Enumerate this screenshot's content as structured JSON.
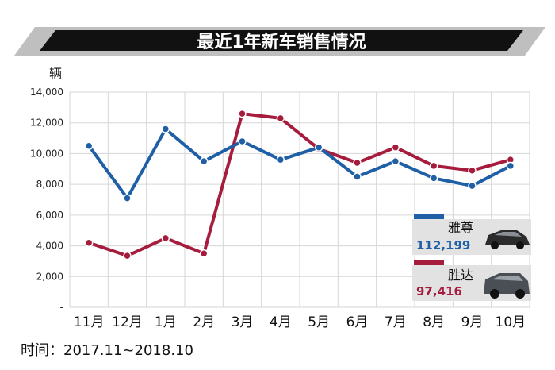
{
  "chart_data": {
    "type": "line",
    "title": "最近1年新车销售情况",
    "ylabel": "辆",
    "categories": [
      "11月",
      "12月",
      "1月",
      "2月",
      "3月",
      "4月",
      "5月",
      "6月",
      "7月",
      "8月",
      "9月",
      "10月"
    ],
    "ylim": [
      0,
      14000
    ],
    "yticks": [
      "-",
      "2,000",
      "4,000",
      "6,000",
      "8,000",
      "10,000",
      "12,000",
      "14,000"
    ],
    "series": [
      {
        "name": "雅尊",
        "color": "#1f5fa6",
        "total": "112,199",
        "values": [
          10500,
          7100,
          11600,
          9500,
          10800,
          9600,
          10400,
          8500,
          9500,
          8400,
          7900,
          9200
        ]
      },
      {
        "name": "胜达",
        "color": "#a51c3c",
        "total": "97,416",
        "values": [
          4200,
          3350,
          4500,
          3500,
          12600,
          12300,
          10300,
          9400,
          10400,
          9200,
          8900,
          9600
        ]
      }
    ],
    "grid": true,
    "legend": "bottom-right",
    "footnote": "时间：2017.11~2018.10"
  }
}
